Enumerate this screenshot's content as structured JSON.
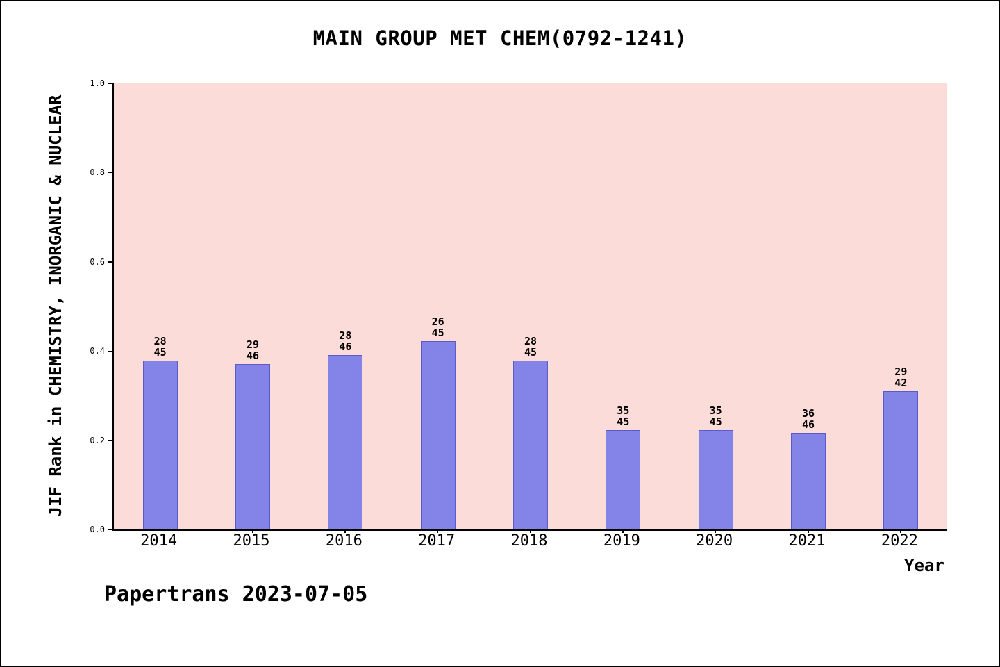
{
  "chart_data": {
    "type": "bar",
    "title": "MAIN GROUP MET CHEM(0792-1241)",
    "ylabel": "JIF Rank in CHEMISTRY, INORGANIC & NUCLEAR",
    "xlabel": "Year",
    "categories": [
      "2014",
      "2015",
      "2016",
      "2017",
      "2018",
      "2019",
      "2020",
      "2021",
      "2022"
    ],
    "values": [
      0.378,
      0.37,
      0.391,
      0.422,
      0.378,
      0.222,
      0.222,
      0.217,
      0.31
    ],
    "rank_labels": [
      {
        "rank": "28",
        "total": "45"
      },
      {
        "rank": "29",
        "total": "46"
      },
      {
        "rank": "28",
        "total": "46"
      },
      {
        "rank": "26",
        "total": "45"
      },
      {
        "rank": "28",
        "total": "45"
      },
      {
        "rank": "35",
        "total": "45"
      },
      {
        "rank": "35",
        "total": "45"
      },
      {
        "rank": "36",
        "total": "46"
      },
      {
        "rank": "29",
        "total": "42"
      }
    ],
    "ylim": [
      0.0,
      1.0
    ],
    "yticks": [
      0.0,
      0.2,
      0.4,
      0.6,
      0.8,
      1.0
    ],
    "grid": false,
    "legend": false,
    "colors": {
      "bar_fill": "#8484e8",
      "bar_edge": "#5a5ac8",
      "plot_background": "#fcdcd8",
      "text": "#000000"
    }
  },
  "footer": {
    "text": "Papertrans 2023-07-05"
  }
}
